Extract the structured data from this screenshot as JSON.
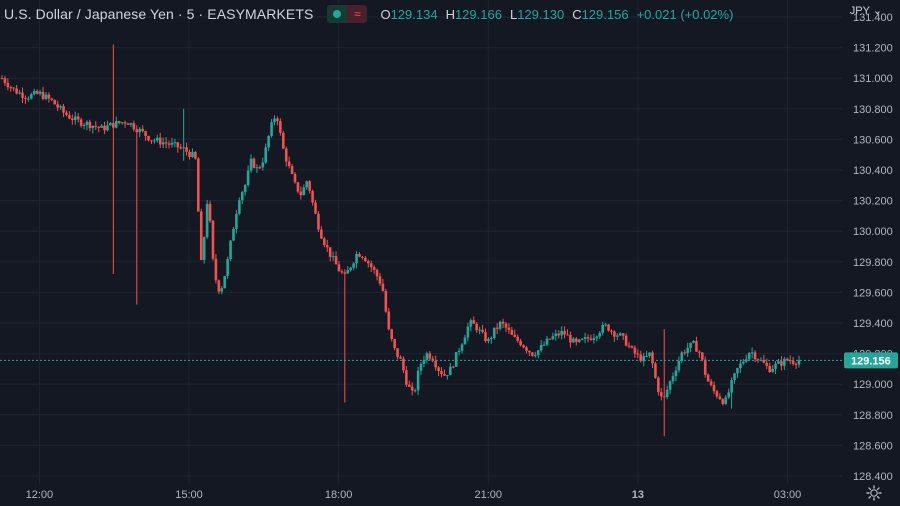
{
  "header": {
    "title": "U.S. Dollar / Japanese Yen · 5 · EASYMARKETS",
    "o_label": "O",
    "o_value": "129.134",
    "h_label": "H",
    "h_value": "129.166",
    "l_label": "L",
    "l_value": "129.130",
    "c_label": "C",
    "c_value": "129.156",
    "change": "+0.021 (+0.02%)",
    "toggle_icon": "wave-icon"
  },
  "currency_label": "JPY",
  "currency_icon": "chevron-down-icon",
  "settings_icon": "gear-icon",
  "colors": {
    "up": "#26a69a",
    "down": "#ef5350",
    "background": "#141823",
    "grid": "#1f2433",
    "price_line": "#26a69a"
  },
  "chart_data": {
    "type": "candlestick",
    "interval": "5",
    "symbol": "U.S. Dollar / Japanese Yen",
    "yticks": [
      "128.400",
      "128.600",
      "128.800",
      "129.000",
      "129.200",
      "129.400",
      "129.600",
      "129.800",
      "130.000",
      "130.200",
      "130.400",
      "130.600",
      "130.800",
      "131.000",
      "131.200",
      "131.400"
    ],
    "ylim": [
      128.4,
      131.4
    ],
    "xticks": [
      "12:00",
      "15:00",
      "18:00",
      "21:00",
      "13",
      "03:00"
    ],
    "last_price": "129.156",
    "grid": true,
    "price_path": [
      [
        0.0,
        131.0
      ],
      [
        4.0,
        130.92
      ],
      [
        8.0,
        130.88
      ],
      [
        12.0,
        130.9
      ],
      [
        16.0,
        130.85
      ],
      [
        20.0,
        130.77
      ],
      [
        24.0,
        130.72
      ],
      [
        28.0,
        130.7
      ],
      [
        32.0,
        130.67
      ],
      [
        36.0,
        130.7
      ],
      [
        40.0,
        130.72
      ],
      [
        44.0,
        130.66
      ],
      [
        48.0,
        130.6
      ],
      [
        52.0,
        130.58
      ],
      [
        58.0,
        130.54
      ],
      [
        62.0,
        130.48
      ],
      [
        64.0,
        129.76
      ],
      [
        66.0,
        130.24
      ],
      [
        68.0,
        129.72
      ],
      [
        70.0,
        129.6
      ],
      [
        72.0,
        129.76
      ],
      [
        74.0,
        130.0
      ],
      [
        76.0,
        130.22
      ],
      [
        78.0,
        130.3
      ],
      [
        80.0,
        130.46
      ],
      [
        82.0,
        130.4
      ],
      [
        84.0,
        130.48
      ],
      [
        86.0,
        130.66
      ],
      [
        88.0,
        130.78
      ],
      [
        90.0,
        130.55
      ],
      [
        92.0,
        130.42
      ],
      [
        94.0,
        130.3
      ],
      [
        96.0,
        130.24
      ],
      [
        98.0,
        130.34
      ],
      [
        100.0,
        130.15
      ],
      [
        102.0,
        130.0
      ],
      [
        104.0,
        129.9
      ],
      [
        106.0,
        129.82
      ],
      [
        108.0,
        129.75
      ],
      [
        110.0,
        129.7
      ],
      [
        112.0,
        129.78
      ],
      [
        114.0,
        129.86
      ],
      [
        116.0,
        129.84
      ],
      [
        118.0,
        129.78
      ],
      [
        120.0,
        129.72
      ],
      [
        122.0,
        129.64
      ],
      [
        124.0,
        129.35
      ],
      [
        126.0,
        129.22
      ],
      [
        128.0,
        129.15
      ],
      [
        130.0,
        129.0
      ],
      [
        132.0,
        128.92
      ],
      [
        134.0,
        129.12
      ],
      [
        136.0,
        129.2
      ],
      [
        138.0,
        129.18
      ],
      [
        140.0,
        129.1
      ],
      [
        142.0,
        129.06
      ],
      [
        144.0,
        129.1
      ],
      [
        146.0,
        129.2
      ],
      [
        148.0,
        129.3
      ],
      [
        150.0,
        129.4
      ],
      [
        152.0,
        129.38
      ],
      [
        154.0,
        129.32
      ],
      [
        156.0,
        129.28
      ],
      [
        158.0,
        129.35
      ],
      [
        160.0,
        129.4
      ],
      [
        162.0,
        129.36
      ],
      [
        164.0,
        129.3
      ],
      [
        166.0,
        129.28
      ],
      [
        168.0,
        129.24
      ],
      [
        170.0,
        129.2
      ],
      [
        172.0,
        129.22
      ],
      [
        174.0,
        129.26
      ],
      [
        176.0,
        129.3
      ],
      [
        178.0,
        129.32
      ],
      [
        180.0,
        129.34
      ],
      [
        182.0,
        129.3
      ],
      [
        184.0,
        129.26
      ],
      [
        186.0,
        129.28
      ],
      [
        188.0,
        129.3
      ],
      [
        190.0,
        129.32
      ],
      [
        192.0,
        129.36
      ],
      [
        194.0,
        129.38
      ],
      [
        196.0,
        129.34
      ],
      [
        198.0,
        129.32
      ],
      [
        200.0,
        129.28
      ],
      [
        202.0,
        129.22
      ],
      [
        204.0,
        129.18
      ],
      [
        206.0,
        129.16
      ],
      [
        208.0,
        129.2
      ],
      [
        210.0,
        129.0
      ],
      [
        212.0,
        128.88
      ],
      [
        214.0,
        129.0
      ],
      [
        216.0,
        129.1
      ],
      [
        218.0,
        129.2
      ],
      [
        220.0,
        129.24
      ],
      [
        222.0,
        129.26
      ],
      [
        224.0,
        129.2
      ],
      [
        226.0,
        129.04
      ],
      [
        228.0,
        128.96
      ],
      [
        230.0,
        128.92
      ],
      [
        232.0,
        128.88
      ],
      [
        234.0,
        129.0
      ],
      [
        236.0,
        129.1
      ],
      [
        238.0,
        129.16
      ],
      [
        240.0,
        129.22
      ],
      [
        242.0,
        129.18
      ],
      [
        244.0,
        129.14
      ],
      [
        246.0,
        129.1
      ],
      [
        248.0,
        129.12
      ],
      [
        250.0,
        129.14
      ],
      [
        252.0,
        129.16
      ],
      [
        254.0,
        129.15
      ],
      [
        256.0,
        129.16
      ]
    ],
    "x_domain": [
      0,
      256
    ],
    "x_tick_positions": [
      12.0,
      60.0,
      108.0,
      156.0,
      204.0,
      252.0
    ],
    "spikes": [
      {
        "at": 36.0,
        "high": 131.22,
        "low": 129.72
      },
      {
        "at": 43.0,
        "high": 130.26,
        "low": 129.52
      },
      {
        "at": 58.0,
        "high": 130.8,
        "low": 130.46
      },
      {
        "at": 110.0,
        "high": 129.28,
        "low": 128.88
      },
      {
        "at": 212.0,
        "high": 129.36,
        "low": 128.66
      },
      {
        "at": 234.0,
        "high": 129.02,
        "low": 128.84
      }
    ]
  }
}
